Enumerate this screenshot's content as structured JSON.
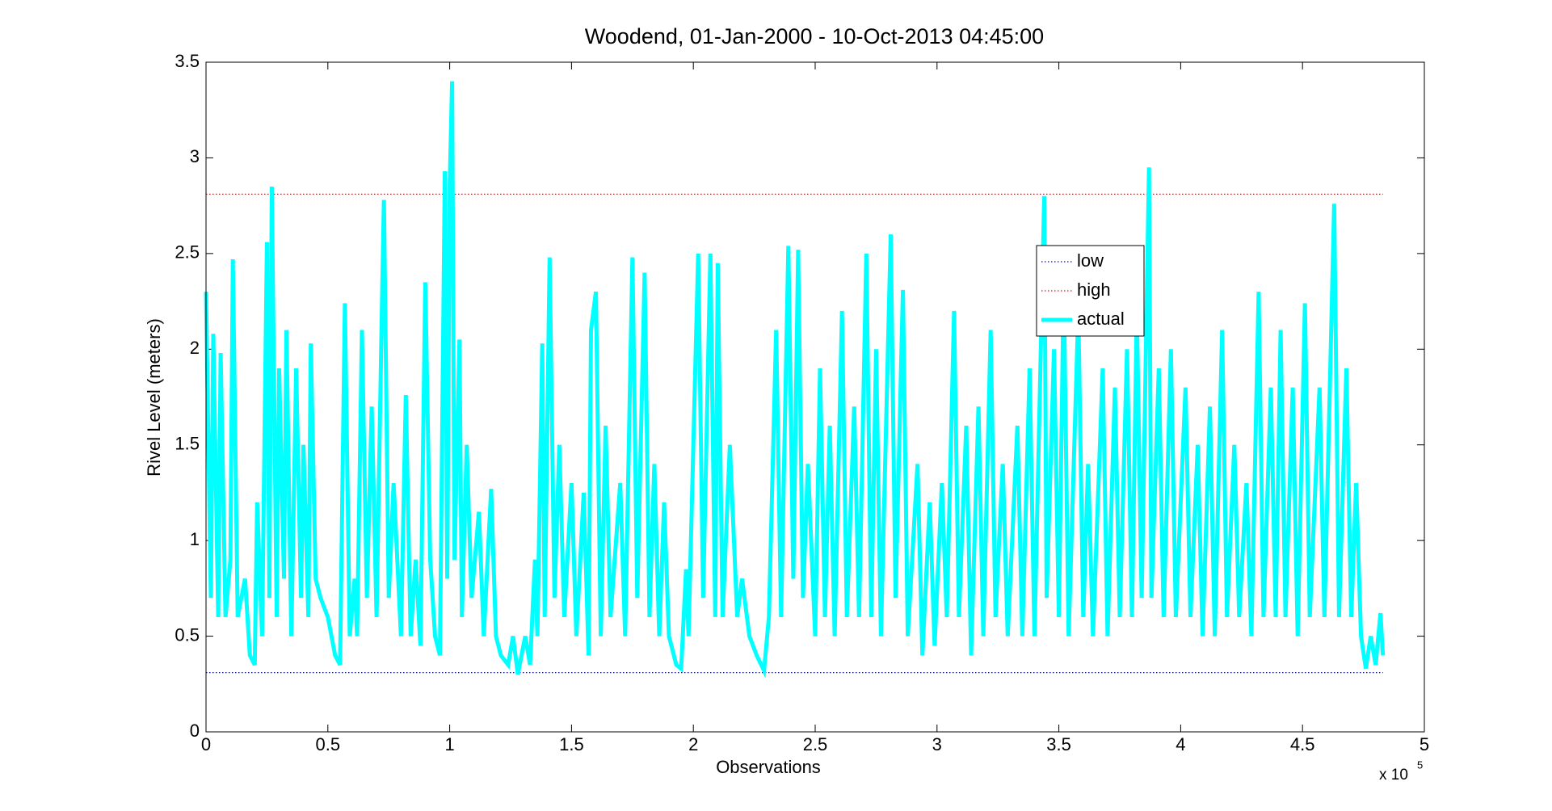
{
  "chart_data": {
    "type": "line",
    "title": "Woodend, 01-Jan-2000 - 10-Oct-2013 04:45:00",
    "x_label": "Observations",
    "y_label": "Rivel Level (meters)",
    "x_multiplier": "x 10",
    "x_exponent": "5",
    "xlim": [
      0,
      5
    ],
    "xticks": [
      0,
      0.5,
      1,
      1.5,
      2,
      2.5,
      3,
      3.5,
      4,
      4.5,
      5
    ],
    "ylim": [
      0,
      3.5
    ],
    "yticks": [
      0,
      0.5,
      1,
      1.5,
      2,
      2.5,
      3,
      3.5
    ],
    "grid": false,
    "legend": "upper right",
    "series": [
      {
        "name": "low",
        "color": "#0000ff",
        "style": "dotted",
        "x": [
          0,
          4.83
        ],
        "values": [
          0.31,
          0.31
        ]
      },
      {
        "name": "high",
        "color": "#ff0000",
        "style": "dotted",
        "x": [
          0,
          4.83
        ],
        "values": [
          2.81,
          2.81
        ]
      },
      {
        "name": "actual",
        "color": "#00ffff",
        "style": "solid",
        "x": [
          0,
          0.02,
          0.03,
          0.05,
          0.06,
          0.08,
          0.1,
          0.11,
          0.13,
          0.16,
          0.18,
          0.2,
          0.21,
          0.23,
          0.25,
          0.26,
          0.27,
          0.29,
          0.3,
          0.32,
          0.33,
          0.35,
          0.37,
          0.39,
          0.4,
          0.42,
          0.43,
          0.45,
          0.47,
          0.5,
          0.53,
          0.55,
          0.57,
          0.59,
          0.61,
          0.62,
          0.64,
          0.66,
          0.68,
          0.7,
          0.72,
          0.73,
          0.75,
          0.77,
          0.8,
          0.82,
          0.84,
          0.86,
          0.88,
          0.9,
          0.92,
          0.94,
          0.96,
          0.98,
          0.99,
          1.0,
          1.01,
          1.02,
          1.04,
          1.05,
          1.07,
          1.09,
          1.12,
          1.14,
          1.17,
          1.19,
          1.21,
          1.24,
          1.26,
          1.28,
          1.31,
          1.33,
          1.35,
          1.36,
          1.38,
          1.39,
          1.41,
          1.43,
          1.45,
          1.47,
          1.5,
          1.52,
          1.55,
          1.57,
          1.58,
          1.6,
          1.62,
          1.64,
          1.66,
          1.7,
          1.72,
          1.75,
          1.77,
          1.8,
          1.82,
          1.84,
          1.86,
          1.88,
          1.9,
          1.93,
          1.95,
          1.97,
          1.98,
          2.02,
          2.04,
          2.07,
          2.09,
          2.1,
          2.12,
          2.15,
          2.18,
          2.2,
          2.23,
          2.26,
          2.29,
          2.31,
          2.34,
          2.36,
          2.39,
          2.41,
          2.43,
          2.45,
          2.47,
          2.5,
          2.52,
          2.54,
          2.56,
          2.58,
          2.61,
          2.63,
          2.66,
          2.68,
          2.71,
          2.73,
          2.75,
          2.77,
          2.81,
          2.83,
          2.86,
          2.88,
          2.92,
          2.94,
          2.97,
          2.99,
          3.02,
          3.04,
          3.07,
          3.09,
          3.12,
          3.14,
          3.17,
          3.19,
          3.22,
          3.24,
          3.27,
          3.29,
          3.33,
          3.35,
          3.38,
          3.4,
          3.44,
          3.45,
          3.48,
          3.5,
          3.52,
          3.54,
          3.58,
          3.6,
          3.62,
          3.64,
          3.68,
          3.7,
          3.73,
          3.75,
          3.78,
          3.8,
          3.82,
          3.84,
          3.87,
          3.88,
          3.91,
          3.93,
          3.96,
          3.98,
          4.02,
          4.04,
          4.07,
          4.09,
          4.12,
          4.14,
          4.17,
          4.19,
          4.22,
          4.24,
          4.27,
          4.29,
          4.32,
          4.34,
          4.37,
          4.39,
          4.41,
          4.43,
          4.46,
          4.48,
          4.51,
          4.53,
          4.57,
          4.59,
          4.63,
          4.65,
          4.68,
          4.7,
          4.72,
          4.74,
          4.76,
          4.78,
          4.8,
          4.82,
          4.83
        ],
        "values": [
          2.3,
          0.7,
          2.08,
          0.6,
          1.98,
          0.6,
          0.9,
          2.47,
          0.6,
          0.8,
          0.4,
          0.35,
          1.2,
          0.5,
          2.56,
          0.7,
          2.85,
          0.6,
          1.9,
          0.8,
          2.1,
          0.5,
          1.9,
          0.7,
          1.5,
          0.6,
          2.03,
          0.8,
          0.7,
          0.6,
          0.4,
          0.35,
          2.24,
          0.5,
          0.8,
          0.5,
          2.1,
          0.7,
          1.7,
          0.6,
          2.1,
          2.78,
          0.7,
          1.3,
          0.5,
          1.76,
          0.5,
          0.9,
          0.45,
          2.35,
          0.9,
          0.5,
          0.4,
          2.93,
          0.8,
          2.85,
          3.4,
          0.9,
          2.05,
          0.6,
          1.5,
          0.7,
          1.15,
          0.5,
          1.27,
          0.5,
          0.4,
          0.35,
          0.5,
          0.3,
          0.5,
          0.35,
          0.9,
          0.5,
          2.03,
          0.6,
          2.48,
          0.7,
          1.5,
          0.6,
          1.3,
          0.5,
          1.25,
          0.4,
          2.1,
          2.3,
          0.5,
          1.6,
          0.6,
          1.3,
          0.5,
          2.48,
          0.7,
          2.4,
          0.6,
          1.4,
          0.5,
          1.2,
          0.5,
          0.35,
          0.33,
          0.85,
          0.5,
          2.5,
          0.7,
          2.5,
          0.6,
          2.45,
          0.6,
          1.5,
          0.6,
          0.8,
          0.5,
          0.4,
          0.32,
          0.6,
          2.1,
          0.6,
          2.54,
          0.8,
          2.52,
          0.7,
          1.4,
          0.5,
          1.9,
          0.6,
          1.6,
          0.5,
          2.2,
          0.6,
          1.7,
          0.6,
          2.5,
          0.6,
          2.0,
          0.5,
          2.6,
          0.7,
          2.31,
          0.5,
          1.4,
          0.4,
          1.2,
          0.45,
          1.3,
          0.6,
          2.2,
          0.6,
          1.6,
          0.4,
          1.7,
          0.5,
          2.1,
          0.6,
          1.4,
          0.5,
          1.6,
          0.5,
          1.9,
          0.5,
          2.8,
          0.7,
          2.0,
          0.6,
          2.35,
          0.5,
          2.2,
          0.6,
          1.4,
          0.5,
          1.9,
          0.5,
          1.8,
          0.6,
          2.0,
          0.6,
          2.2,
          0.7,
          2.95,
          0.7,
          1.9,
          0.6,
          2.0,
          0.6,
          1.8,
          0.6,
          1.5,
          0.5,
          1.7,
          0.5,
          2.1,
          0.6,
          1.5,
          0.6,
          1.3,
          0.5,
          2.3,
          0.6,
          1.8,
          0.6,
          2.1,
          0.6,
          1.8,
          0.5,
          2.24,
          0.6,
          1.8,
          0.6,
          2.76,
          0.6,
          1.9,
          0.6,
          1.3,
          0.5,
          0.33,
          0.5,
          0.35,
          0.62,
          0.4
        ]
      }
    ]
  }
}
